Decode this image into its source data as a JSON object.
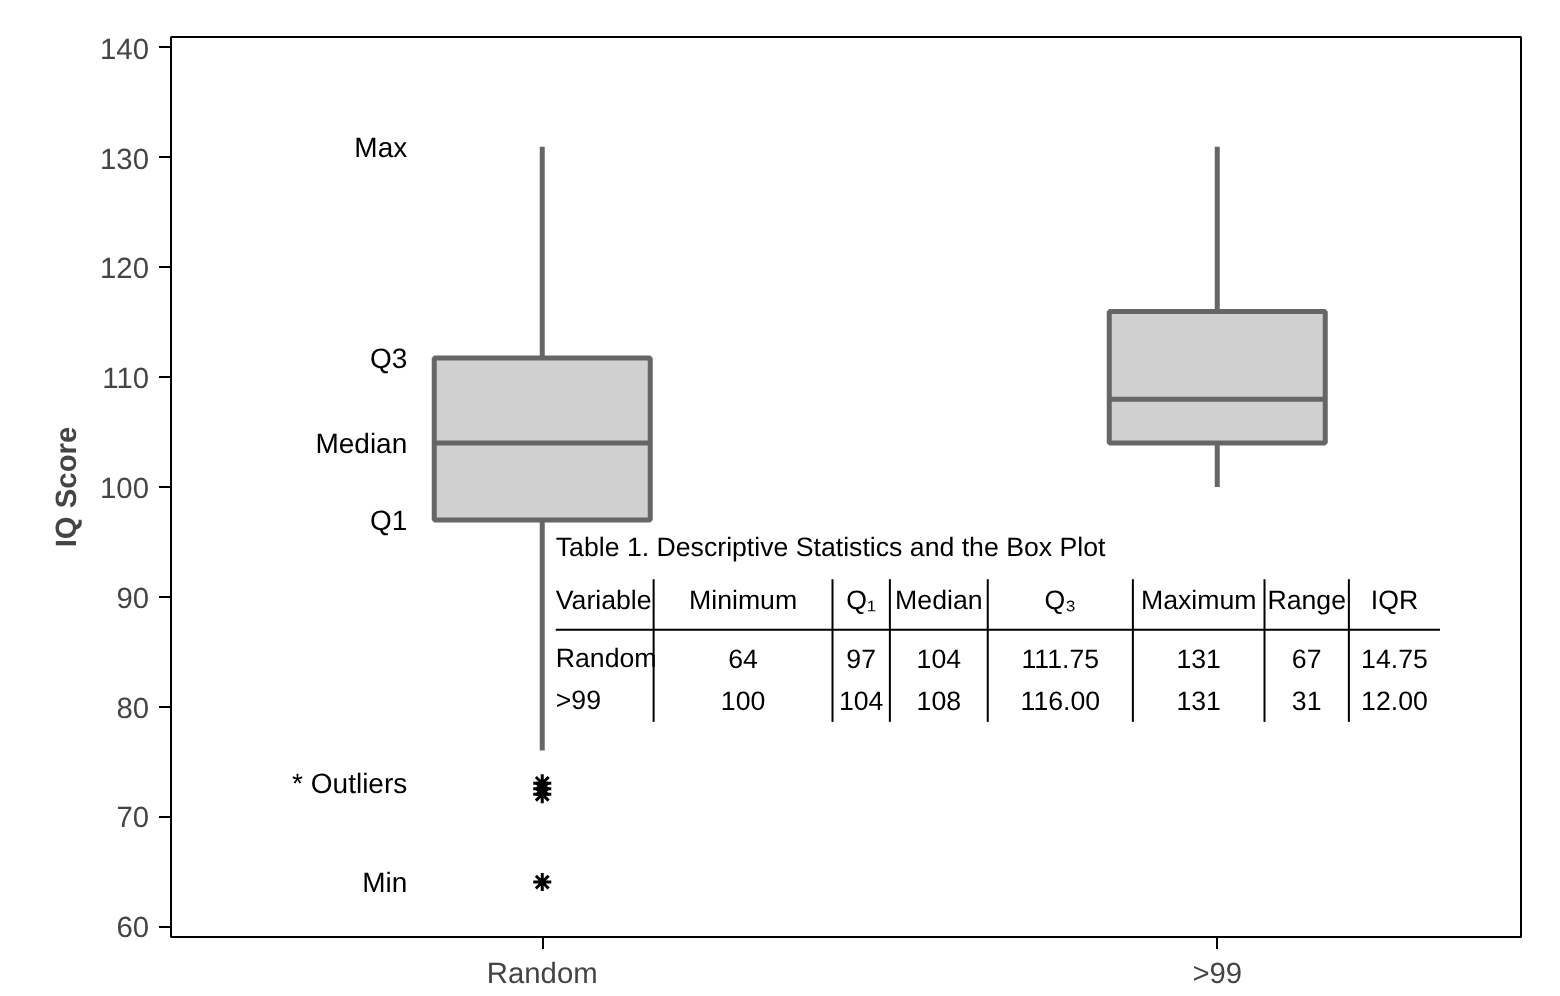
{
  "chart_data": {
    "type": "box",
    "ylabel": "IQ Score",
    "categories": [
      "Random",
      ">99"
    ],
    "boxes": [
      {
        "low": 76,
        "q1": 97,
        "median": 104,
        "q3": 111.75,
        "high": 131,
        "outliers": [
          73,
          72.5,
          72,
          64
        ]
      },
      {
        "low": 100,
        "q1": 104,
        "median": 108,
        "q3": 116,
        "high": 131
      }
    ],
    "color": "#d0d0d0",
    "ylim": [
      59,
      141
    ],
    "yticks": [
      60,
      70,
      80,
      90,
      100,
      110,
      120,
      130,
      140
    ],
    "grid": false,
    "marker": "star",
    "annotations": [
      "Max",
      "Q3",
      "Median",
      "Q1",
      "* Outliers",
      "Min",
      "Table 1. Descriptive Statistics and the Box Plot",
      "Variable",
      "Minimum",
      "Q₁",
      "Median",
      "Q₃",
      "Maximum",
      "Range",
      "IQR",
      "Random",
      "64",
      "97",
      "104",
      "111.75",
      "131",
      "67",
      "14.75",
      ">99",
      "100",
      "104",
      "108",
      "116.00",
      "131",
      "31",
      "12.00"
    ]
  }
}
